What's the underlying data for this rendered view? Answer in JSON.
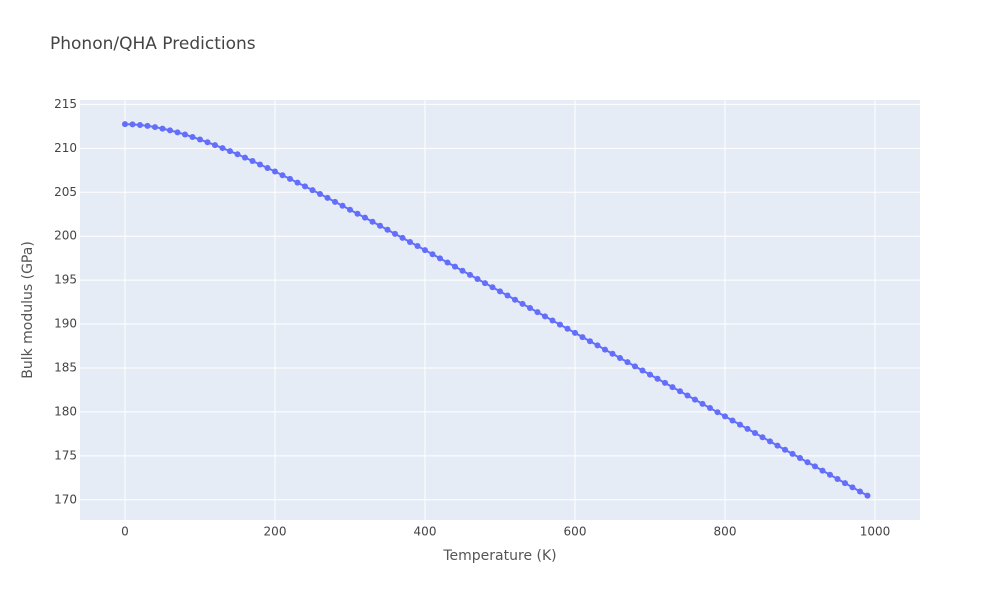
{
  "chart_data": {
    "type": "line",
    "title": "Phonon/QHA Predictions",
    "x_label": "Temperature (K)",
    "y_label": "Bulk modulus (GPa)",
    "x": [
      0,
      10,
      20,
      30,
      40,
      50,
      60,
      70,
      80,
      90,
      100,
      110,
      120,
      130,
      140,
      150,
      160,
      170,
      180,
      190,
      200,
      210,
      220,
      230,
      240,
      250,
      260,
      270,
      280,
      290,
      300,
      310,
      320,
      330,
      340,
      350,
      360,
      370,
      380,
      390,
      400,
      410,
      420,
      430,
      440,
      450,
      460,
      470,
      480,
      490,
      500,
      510,
      520,
      530,
      540,
      550,
      560,
      570,
      580,
      590,
      600,
      610,
      620,
      630,
      640,
      650,
      660,
      670,
      680,
      690,
      700,
      710,
      720,
      730,
      740,
      750,
      760,
      770,
      780,
      790,
      800,
      810,
      820,
      830,
      840,
      850,
      860,
      870,
      880,
      890,
      900,
      910,
      920,
      930,
      940,
      950,
      960,
      970,
      980,
      990
    ],
    "series": [
      {
        "color": "#636efa",
        "values": [
          212.75,
          212.73,
          212.66,
          212.56,
          212.42,
          212.24,
          212.04,
          211.82,
          211.57,
          211.29,
          211.0,
          210.69,
          210.37,
          210.03,
          209.68,
          209.32,
          208.94,
          208.56,
          208.16,
          207.76,
          207.36,
          206.94,
          206.52,
          206.1,
          205.67,
          205.24,
          204.8,
          204.36,
          203.91,
          203.46,
          203.01,
          202.56,
          202.11,
          201.65,
          201.19,
          200.73,
          200.27,
          199.81,
          199.34,
          198.88,
          198.41,
          197.95,
          197.48,
          197.01,
          196.54,
          196.07,
          195.6,
          195.13,
          194.66,
          194.19,
          193.72,
          193.25,
          192.77,
          192.3,
          191.83,
          191.36,
          190.88,
          190.41,
          189.94,
          189.46,
          188.99,
          188.51,
          188.04,
          187.57,
          187.09,
          186.62,
          186.14,
          185.67,
          185.19,
          184.72,
          184.25,
          183.77,
          183.3,
          182.82,
          182.35,
          181.87,
          181.4,
          180.92,
          180.45,
          179.97,
          179.5,
          179.02,
          178.55,
          178.07,
          177.6,
          177.12,
          176.65,
          176.17,
          175.7,
          175.22,
          174.75,
          174.27,
          173.8,
          173.32,
          172.85,
          172.37,
          171.9,
          171.42,
          170.95,
          170.47
        ]
      }
    ],
    "xlim": [
      -60,
      1060
    ],
    "ylim": [
      167.7,
      215.5
    ],
    "xticks": [
      0,
      200,
      400,
      600,
      800,
      1000
    ],
    "yticks": [
      170,
      175,
      180,
      185,
      190,
      195,
      200,
      205,
      210,
      215
    ],
    "grid": true,
    "markers": true
  }
}
